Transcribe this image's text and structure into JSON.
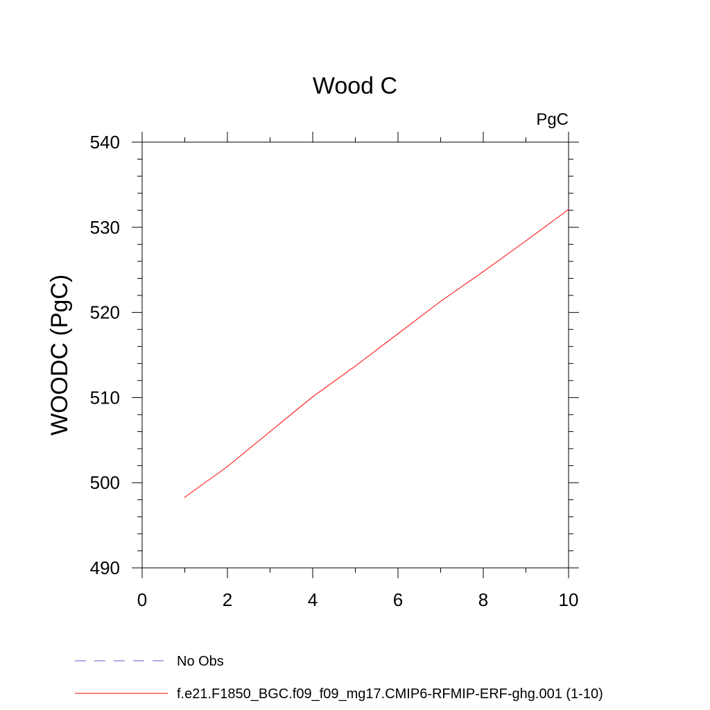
{
  "chart_data": {
    "type": "line",
    "title": "Wood C",
    "units_label": "PgC",
    "xlabel": "",
    "ylabel": "WOODC  (PgC)",
    "xlim": [
      0,
      10
    ],
    "ylim": [
      490,
      540
    ],
    "x_ticks": [
      0,
      2,
      4,
      6,
      8,
      10
    ],
    "y_ticks": [
      490,
      500,
      510,
      520,
      530,
      540
    ],
    "grid": false,
    "legend_position": "bottom",
    "series": [
      {
        "name": "f.e21.F1850_BGC.f09_f09_mg17.CMIP6-RFMIP-ERF-ghg.001 (1-10)",
        "color": "#ff0000",
        "style": "solid",
        "x": [
          1,
          2,
          3,
          4,
          5,
          6,
          7,
          8,
          9,
          10
        ],
        "values": [
          498.3,
          501.9,
          506.0,
          510.1,
          513.7,
          517.5,
          521.3,
          524.8,
          528.4,
          532.1
        ]
      }
    ],
    "legend": [
      {
        "label": "No Obs",
        "color": "#6a5acd",
        "style": "dashed"
      },
      {
        "label": "f.e21.F1850_BGC.f09_f09_mg17.CMIP6-RFMIP-ERF-ghg.001 (1-10)",
        "color": "#ff0000",
        "style": "solid"
      }
    ]
  }
}
